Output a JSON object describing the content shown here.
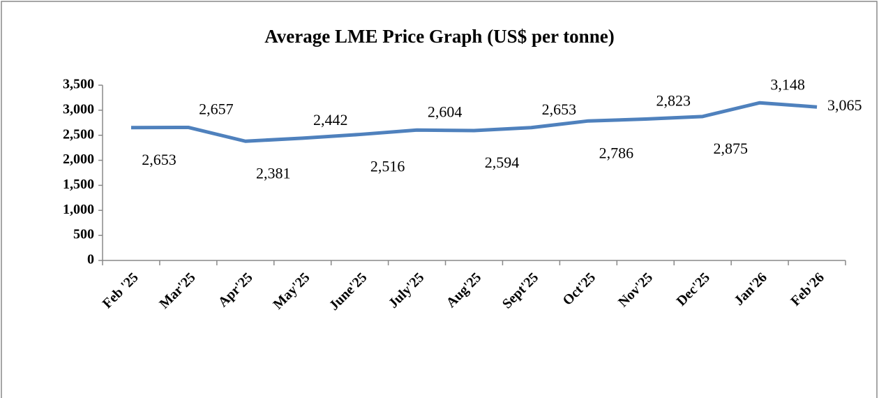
{
  "chart_data": {
    "type": "line",
    "title": "Average LME Price Graph (US$ per tonne)",
    "categories": [
      "Feb '25",
      "Mar'25",
      "Apr'25",
      "May'25",
      "June'25",
      "July'25",
      "Aug'25",
      "Sept'25",
      "Oct'25",
      "Nov'25",
      "Dec'25",
      "Jan'26",
      "Feb'26"
    ],
    "values": [
      2653,
      2657,
      2381,
      2442,
      2516,
      2604,
      2594,
      2653,
      2786,
      2823,
      2875,
      3148,
      3065
    ],
    "value_labels": [
      "2,653",
      "2,657",
      "2,381",
      "2,442",
      "2,516",
      "2,604",
      "2,594",
      "2,653",
      "2,786",
      "2,823",
      "2,875",
      "3,148",
      "3,065"
    ],
    "color": "#4f81bd",
    "ylim": [
      0,
      3500
    ],
    "yticks": [
      0,
      500,
      {
        "value": 1000,
        "label": "1,000"
      },
      {
        "value": 1500,
        "label": "1,500"
      },
      {
        "value": 2000,
        "label": "2,000"
      },
      {
        "value": 2500,
        "label": "2,500"
      },
      {
        "value": 3000,
        "label": "3,000"
      },
      {
        "value": 3500,
        "label": "3,500"
      }
    ],
    "grid": false
  }
}
